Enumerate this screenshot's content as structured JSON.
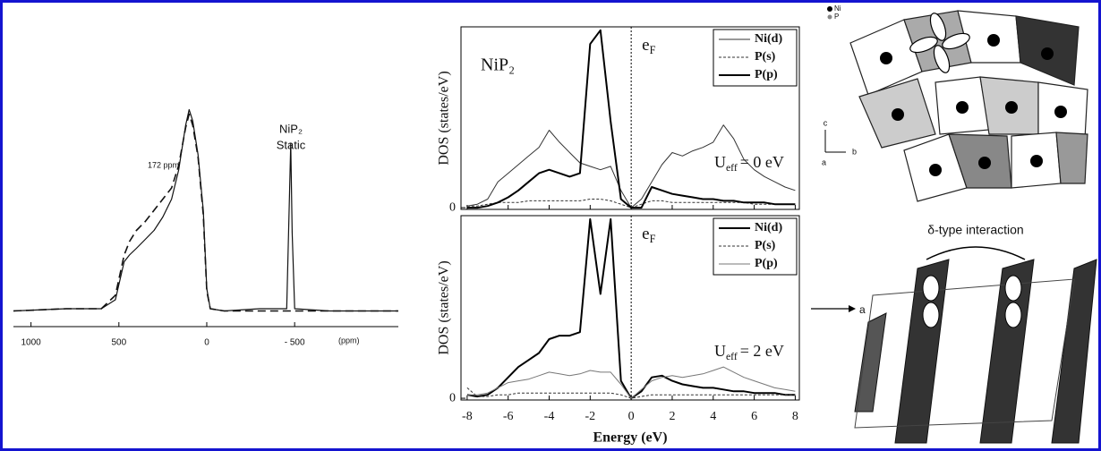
{
  "chart_data": [
    {
      "type": "line",
      "annotations": [
        "172 ppm",
        "NiP₂",
        "Static"
      ],
      "xlabel": "(ppm)",
      "xlim": [
        1100,
        -1090
      ],
      "xticks": [
        1000,
        500,
        0,
        {
          "value": -500,
          "label": "- 500"
        }
      ],
      "ylim": [
        0,
        1
      ],
      "series": [
        {
          "color": "#111",
          "line_width": 1.2,
          "dash": "none",
          "x": [
            1100,
            800,
            600,
            520,
            470,
            440,
            400,
            350,
            300,
            250,
            200,
            160,
            120,
            100,
            80,
            50,
            20,
            0,
            -20,
            -100,
            -300,
            -455,
            -470,
            -478,
            -486,
            -500,
            -700,
            -1090
          ],
          "values": [
            0.05,
            0.06,
            0.06,
            0.1,
            0.27,
            0.3,
            0.33,
            0.37,
            0.41,
            0.47,
            0.55,
            0.68,
            0.88,
            0.95,
            0.9,
            0.75,
            0.5,
            0.15,
            0.06,
            0.05,
            0.06,
            0.06,
            0.55,
            0.8,
            0.4,
            0.06,
            0.05,
            0.05
          ]
        },
        {
          "color": "#111",
          "line_width": 1.6,
          "dash": "9 5",
          "x": [
            1100,
            800,
            600,
            520,
            470,
            440,
            400,
            350,
            300,
            250,
            200,
            160,
            120,
            100,
            80,
            50,
            20,
            0,
            -20,
            -100,
            -1090
          ],
          "values": [
            0.05,
            0.06,
            0.06,
            0.12,
            0.3,
            0.36,
            0.41,
            0.45,
            0.5,
            0.55,
            0.6,
            0.7,
            0.87,
            0.93,
            0.88,
            0.74,
            0.48,
            0.14,
            0.06,
            0.05,
            0.05
          ]
        }
      ]
    },
    {
      "type": "line",
      "label": "NiP₂",
      "fermi_label": {
        "base": "e",
        "sub": "F"
      },
      "ueff_label": {
        "base": "U",
        "sub": "eff",
        "rest": "= 0 eV"
      },
      "ylabel": "DOS (states/eV)",
      "xlim": [
        -8.3,
        8.2
      ],
      "xticks": [
        -8,
        -6,
        -4,
        -2,
        0,
        2,
        4,
        6,
        8
      ],
      "show_xtick_labels": false,
      "ylim": [
        -0.1,
        10.5
      ],
      "yticks": [
        0
      ],
      "vline": 0,
      "x": [
        -8,
        -7.5,
        -7,
        -6.5,
        -6,
        -5.5,
        -5,
        -4.5,
        -4,
        -3.5,
        -3,
        -2.5,
        -2,
        -1.5,
        -1,
        -0.5,
        0,
        0.5,
        1,
        1.5,
        2,
        2.5,
        3,
        3.5,
        4,
        4.5,
        5,
        5.5,
        6,
        6.5,
        7,
        7.5,
        8
      ],
      "series": [
        {
          "name": "Ni(d)",
          "color": "#333",
          "line_width": 1,
          "dash": "none",
          "values": [
            0.1,
            0.2,
            0.5,
            1.5,
            2,
            2.5,
            3,
            3.5,
            4.5,
            3.8,
            3.2,
            2.6,
            2.4,
            2.2,
            2.4,
            1,
            0,
            0.5,
            1.5,
            2.5,
            3.2,
            3,
            3.3,
            3.5,
            3.8,
            4.8,
            4,
            2.8,
            2.2,
            1.8,
            1.5,
            1.2,
            1
          ]
        },
        {
          "name": "P(s)",
          "color": "#333",
          "line_width": 1,
          "dash": "3 2",
          "values": [
            0.1,
            0.1,
            0.2,
            0.3,
            0.3,
            0.3,
            0.4,
            0.4,
            0.4,
            0.4,
            0.4,
            0.4,
            0.5,
            0.5,
            0.4,
            0.2,
            0,
            0.2,
            0.4,
            0.4,
            0.3,
            0.3,
            0.3,
            0.3,
            0.3,
            0.3,
            0.3,
            0.3,
            0.2,
            0.2,
            0.2,
            0.2,
            0.2
          ]
        },
        {
          "name": "P(p)",
          "color": "#000",
          "line_width": 2,
          "dash": "none",
          "values": [
            0,
            0,
            0.1,
            0.3,
            0.6,
            1,
            1.5,
            2,
            2.2,
            2,
            1.8,
            2,
            9.5,
            10.3,
            5,
            0.5,
            0,
            0,
            1.2,
            1,
            0.8,
            0.7,
            0.6,
            0.5,
            0.5,
            0.4,
            0.4,
            0.3,
            0.3,
            0.3,
            0.2,
            0.2,
            0.2
          ]
        }
      ]
    },
    {
      "type": "line",
      "fermi_label": {
        "base": "e",
        "sub": "F"
      },
      "ueff_label": {
        "base": "U",
        "sub": "eff",
        "rest": "= 2 eV"
      },
      "ylabel": "DOS (states/eV)",
      "xlabel": "Energy (eV)",
      "xlim": [
        -8.3,
        8.2
      ],
      "xticks": [
        -8,
        -6,
        -4,
        -2,
        0,
        2,
        4,
        6,
        8
      ],
      "show_xtick_labels": true,
      "ylim": [
        -0.1,
        10.5
      ],
      "yticks": [
        0
      ],
      "vline": 0,
      "x": [
        -8,
        -7.5,
        -7,
        -6.5,
        -6,
        -5.5,
        -5,
        -4.5,
        -4,
        -3.5,
        -3,
        -2.5,
        -2,
        -1.5,
        -1,
        -0.5,
        0,
        0.5,
        1,
        1.5,
        2,
        2.5,
        3,
        3.5,
        4,
        4.5,
        5,
        5.5,
        6,
        6.5,
        7,
        7.5,
        8
      ],
      "series": [
        {
          "name": "Ni(d)",
          "color": "#000",
          "line_width": 2,
          "dash": "none",
          "values": [
            0.2,
            0.1,
            0.2,
            0.6,
            1.2,
            1.8,
            2.2,
            2.6,
            3.4,
            3.6,
            3.6,
            3.8,
            10.3,
            6,
            10.3,
            1,
            0,
            0.4,
            1.2,
            1.3,
            1,
            0.8,
            0.7,
            0.6,
            0.6,
            0.5,
            0.4,
            0.4,
            0.3,
            0.3,
            0.3,
            0.2,
            0.2
          ]
        },
        {
          "name": "P(s)",
          "color": "#333",
          "line_width": 1,
          "dash": "3 2",
          "values": [
            0.6,
            0.1,
            0.1,
            0.2,
            0.2,
            0.3,
            0.3,
            0.3,
            0.3,
            0.3,
            0.3,
            0.3,
            0.3,
            0.3,
            0.3,
            0.2,
            0,
            0.1,
            0.2,
            0.2,
            0.2,
            0.2,
            0.2,
            0.2,
            0.2,
            0.2,
            0.2,
            0.2,
            0.2,
            0.2,
            0.2,
            0.2,
            0.2
          ]
        },
        {
          "name": "P(p)",
          "color": "#777",
          "line_width": 1,
          "dash": "none",
          "values": [
            0.2,
            0.2,
            0.3,
            0.6,
            0.9,
            1,
            1.1,
            1.3,
            1.5,
            1.4,
            1.3,
            1.4,
            1.6,
            1.5,
            1.5,
            0.8,
            0,
            0.5,
            1,
            1.2,
            1.3,
            1.2,
            1.3,
            1.4,
            1.6,
            1.8,
            1.5,
            1.2,
            1,
            0.8,
            0.6,
            0.5,
            0.4
          ]
        }
      ]
    }
  ],
  "structure_labels": {
    "ni": "Ni",
    "p": "P",
    "axis_c": "c",
    "axis_b": "b",
    "axis_a": "a",
    "interaction": "δ-type interaction",
    "direction": "a"
  }
}
